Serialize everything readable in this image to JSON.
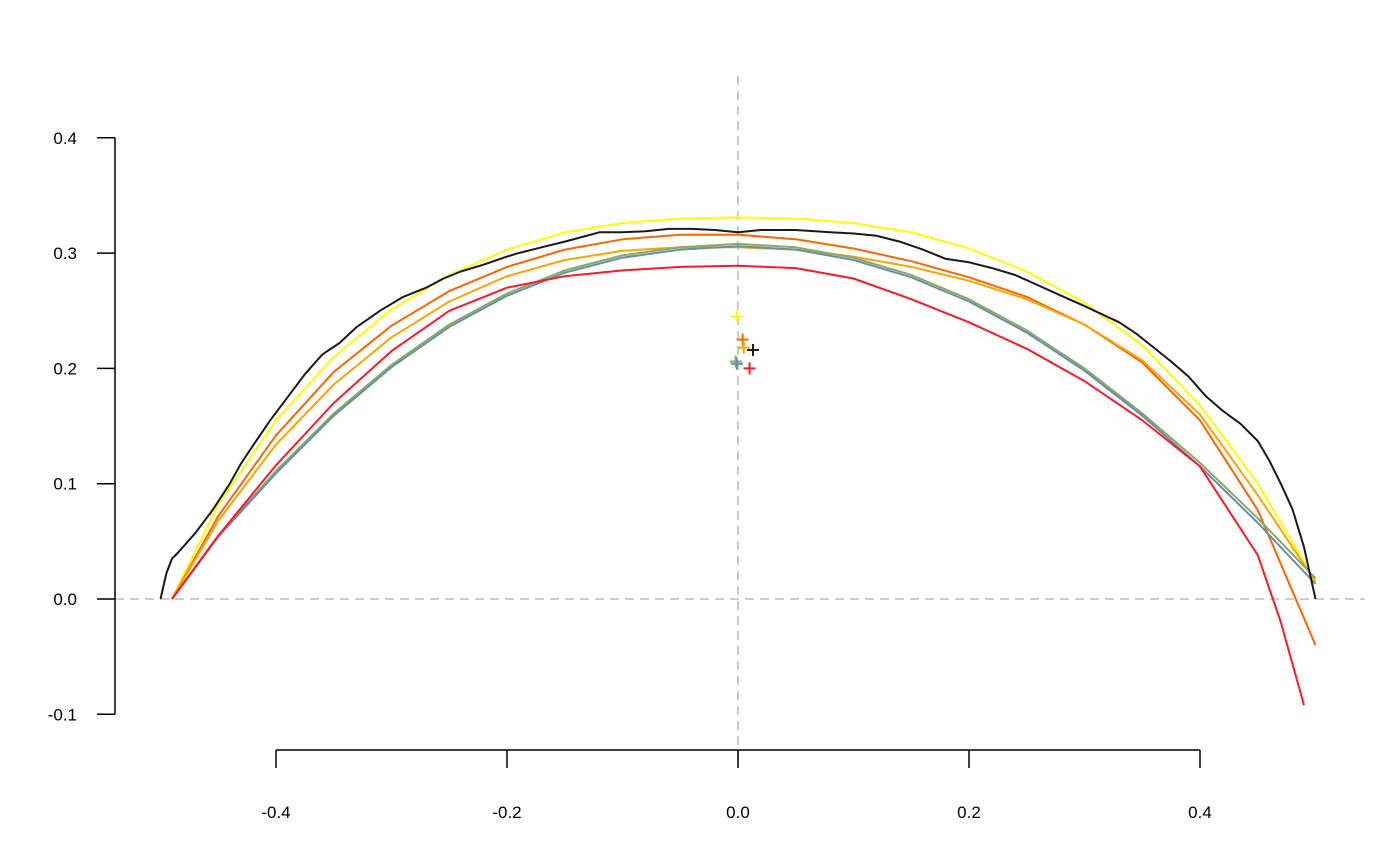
{
  "chart_data": {
    "type": "line",
    "title": "",
    "xlabel": "",
    "ylabel": "",
    "xlim": [
      -0.5,
      0.5
    ],
    "ylim": [
      -0.1,
      0.4
    ],
    "x_ticks": [
      -0.4,
      -0.2,
      0.0,
      0.2,
      0.4
    ],
    "x_tick_labels": [
      "-0.4",
      "-0.2",
      "0.0",
      "0.2",
      "0.4"
    ],
    "y_ticks": [
      -0.1,
      0.0,
      0.1,
      0.2,
      0.3,
      0.4
    ],
    "y_tick_labels": [
      "-0.1",
      "0.0",
      "0.1",
      "0.2",
      "0.3",
      "0.4"
    ],
    "reference_lines": {
      "horizontal": 0.0,
      "vertical": 0.0,
      "style": "dashed",
      "color": "#bebebe"
    },
    "grid": false,
    "legend": false,
    "empirical": {
      "color": "#1a1a1a",
      "x": [
        -0.5,
        -0.495,
        -0.49,
        -0.485,
        -0.47,
        -0.455,
        -0.44,
        -0.43,
        -0.42,
        -0.405,
        -0.39,
        -0.375,
        -0.36,
        -0.345,
        -0.33,
        -0.31,
        -0.29,
        -0.27,
        -0.255,
        -0.24,
        -0.22,
        -0.2,
        -0.19,
        -0.17,
        -0.15,
        -0.135,
        -0.12,
        -0.1,
        -0.08,
        -0.06,
        -0.04,
        -0.02,
        0.0,
        0.02,
        0.05,
        0.08,
        0.1,
        0.12,
        0.14,
        0.16,
        0.18,
        0.2,
        0.22,
        0.24,
        0.26,
        0.28,
        0.3,
        0.315,
        0.33,
        0.345,
        0.36,
        0.375,
        0.39,
        0.405,
        0.42,
        0.435,
        0.45,
        0.46,
        0.47,
        0.48,
        0.49,
        0.5
      ],
      "y": [
        0.0,
        0.022,
        0.035,
        0.04,
        0.057,
        0.077,
        0.1,
        0.118,
        0.133,
        0.155,
        0.175,
        0.195,
        0.212,
        0.222,
        0.236,
        0.25,
        0.262,
        0.27,
        0.278,
        0.284,
        0.29,
        0.297,
        0.3,
        0.305,
        0.31,
        0.314,
        0.318,
        0.318,
        0.319,
        0.321,
        0.321,
        0.32,
        0.318,
        0.32,
        0.32,
        0.318,
        0.317,
        0.315,
        0.31,
        0.303,
        0.295,
        0.292,
        0.287,
        0.281,
        0.272,
        0.263,
        0.254,
        0.247,
        0.24,
        0.23,
        0.218,
        0.206,
        0.193,
        0.176,
        0.163,
        0.152,
        0.137,
        0.12,
        0.1,
        0.078,
        0.045,
        0.0
      ]
    },
    "series": [
      {
        "color": "#ffff00",
        "x": [
          -0.49,
          -0.45,
          -0.4,
          -0.35,
          -0.3,
          -0.25,
          -0.2,
          -0.15,
          -0.1,
          -0.05,
          0.0,
          0.05,
          0.1,
          0.15,
          0.2,
          0.25,
          0.3,
          0.35,
          0.4,
          0.45,
          0.5
        ],
        "y": [
          0.0,
          0.082,
          0.155,
          0.21,
          0.251,
          0.281,
          0.303,
          0.318,
          0.326,
          0.33,
          0.331,
          0.33,
          0.326,
          0.318,
          0.304,
          0.284,
          0.257,
          0.22,
          0.168,
          0.1,
          0.015
        ]
      },
      {
        "color": "#ff6600",
        "x": [
          -0.49,
          -0.45,
          -0.4,
          -0.35,
          -0.3,
          -0.25,
          -0.2,
          -0.15,
          -0.1,
          -0.05,
          0.0,
          0.05,
          0.1,
          0.15,
          0.2,
          0.25,
          0.3,
          0.35,
          0.4,
          0.45,
          0.5
        ],
        "y": [
          0.0,
          0.072,
          0.142,
          0.197,
          0.237,
          0.267,
          0.288,
          0.303,
          0.312,
          0.316,
          0.316,
          0.312,
          0.304,
          0.293,
          0.279,
          0.262,
          0.238,
          0.205,
          0.155,
          0.077,
          -0.04
        ]
      },
      {
        "color": "#ffa500",
        "x": [
          -0.49,
          -0.45,
          -0.4,
          -0.35,
          -0.3,
          -0.25,
          -0.2,
          -0.15,
          -0.1,
          -0.05,
          0.0,
          0.05,
          0.1,
          0.15,
          0.2,
          0.25,
          0.3,
          0.35,
          0.4,
          0.45,
          0.5
        ],
        "y": [
          0.0,
          0.068,
          0.134,
          0.186,
          0.227,
          0.258,
          0.28,
          0.294,
          0.302,
          0.305,
          0.305,
          0.303,
          0.297,
          0.288,
          0.276,
          0.26,
          0.238,
          0.207,
          0.16,
          0.09,
          0.015
        ]
      },
      {
        "color": "#88aa66",
        "x": [
          -0.49,
          -0.45,
          -0.4,
          -0.35,
          -0.3,
          -0.25,
          -0.2,
          -0.15,
          -0.1,
          -0.05,
          0.0,
          0.05,
          0.1,
          0.15,
          0.2,
          0.25,
          0.3,
          0.35,
          0.4,
          0.45,
          0.5
        ],
        "y": [
          0.0,
          0.055,
          0.111,
          0.161,
          0.203,
          0.238,
          0.265,
          0.285,
          0.298,
          0.305,
          0.308,
          0.305,
          0.296,
          0.281,
          0.26,
          0.233,
          0.2,
          0.161,
          0.118,
          0.07,
          0.018
        ]
      },
      {
        "color": "#6a8fa6",
        "x": [
          -0.49,
          -0.45,
          -0.4,
          -0.35,
          -0.3,
          -0.25,
          -0.2,
          -0.15,
          -0.1,
          -0.05,
          0.0,
          0.05,
          0.1,
          0.15,
          0.2,
          0.25,
          0.3,
          0.35,
          0.4,
          0.45,
          0.5
        ],
        "y": [
          0.0,
          0.054,
          0.109,
          0.159,
          0.201,
          0.236,
          0.263,
          0.283,
          0.296,
          0.303,
          0.306,
          0.303,
          0.294,
          0.279,
          0.258,
          0.231,
          0.198,
          0.159,
          0.115,
          0.066,
          0.013
        ]
      },
      {
        "color": "#ff1a2a",
        "x": [
          -0.49,
          -0.45,
          -0.4,
          -0.35,
          -0.3,
          -0.25,
          -0.2,
          -0.15,
          -0.1,
          -0.05,
          0.0,
          0.05,
          0.1,
          0.15,
          0.2,
          0.25,
          0.3,
          0.35,
          0.4,
          0.45,
          0.47,
          0.49
        ],
        "y": [
          0.0,
          0.055,
          0.116,
          0.17,
          0.215,
          0.25,
          0.27,
          0.28,
          0.285,
          0.288,
          0.289,
          0.287,
          0.278,
          0.26,
          0.24,
          0.217,
          0.189,
          0.155,
          0.115,
          0.038,
          -0.02,
          -0.092
        ]
      }
    ],
    "centroids": [
      {
        "color": "#ffff00",
        "x": -0.001,
        "y": 0.245
      },
      {
        "color": "#ff6600",
        "x": 0.004,
        "y": 0.225
      },
      {
        "color": "#ffa500",
        "x": 0.005,
        "y": 0.218
      },
      {
        "color": "#1a1a1a",
        "x": 0.013,
        "y": 0.216
      },
      {
        "color": "#88aa66",
        "x": -0.002,
        "y": 0.206
      },
      {
        "color": "#6a8fa6",
        "x": -0.001,
        "y": 0.204
      },
      {
        "color": "#ff1a2a",
        "x": 0.01,
        "y": 0.2
      }
    ]
  }
}
